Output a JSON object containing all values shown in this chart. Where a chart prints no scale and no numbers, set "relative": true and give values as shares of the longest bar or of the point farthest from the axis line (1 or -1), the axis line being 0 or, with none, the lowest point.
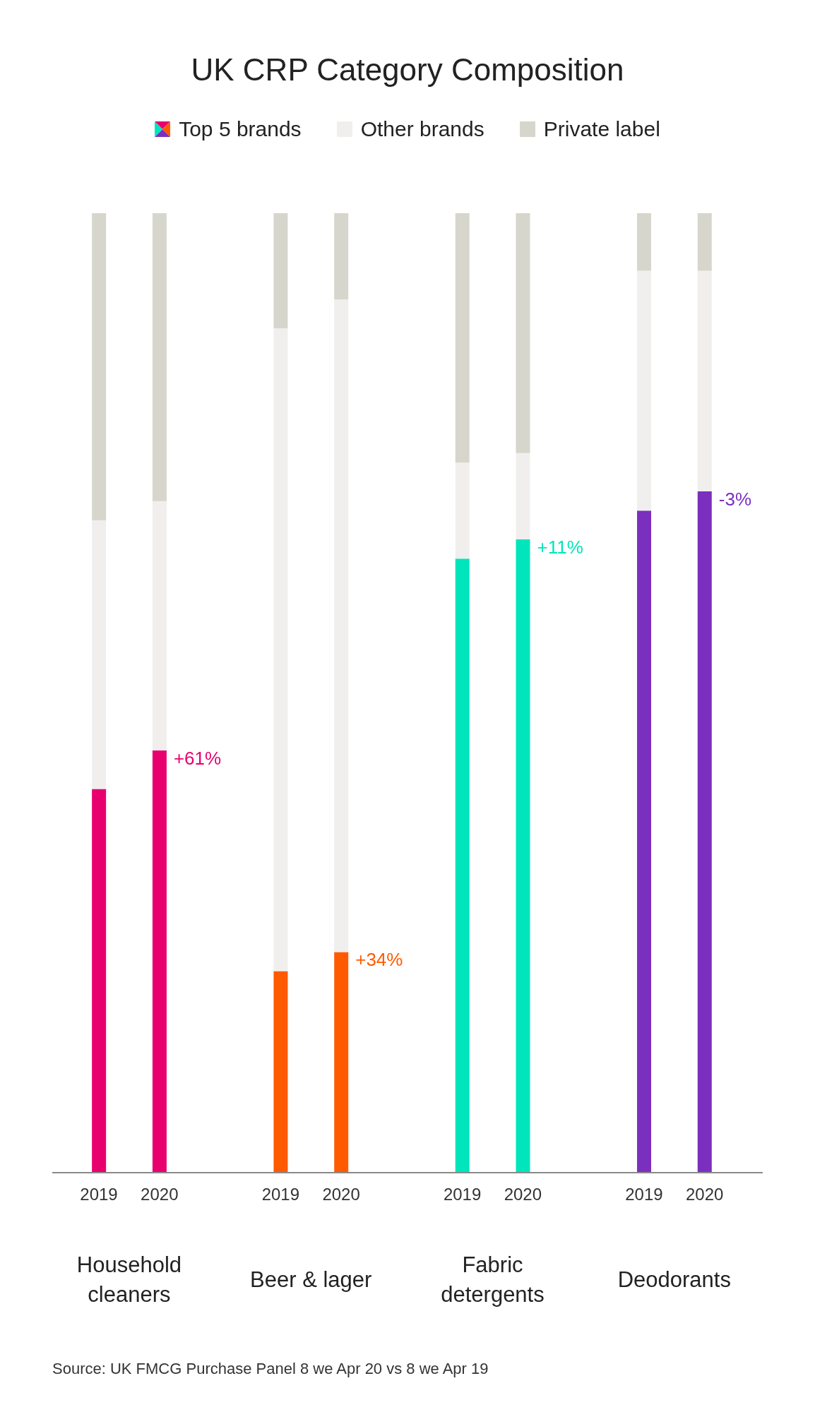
{
  "chart_data": {
    "type": "bar",
    "title": "UK CRP Category Composition",
    "stacked": true,
    "relative": true,
    "legend": "top",
    "categories": [
      "2019",
      "2020",
      "2019",
      "2020",
      "2019",
      "2020",
      "2019",
      "2020"
    ],
    "series": [
      {
        "name": "Top 5 brands",
        "colors": [
          "#e8006f",
          "#e8006f",
          "#ff5a00",
          "#ff5a00",
          "#00e5bb",
          "#00e5bb",
          "#7b2fbe",
          "#7b2fbe"
        ],
        "values": [
          0.4,
          0.44,
          0.21,
          0.23,
          0.64,
          0.66,
          0.69,
          0.71
        ]
      },
      {
        "name": "Other brands",
        "color": "#f0efed",
        "values": [
          0.28,
          0.26,
          0.67,
          0.68,
          0.1,
          0.09,
          0.25,
          0.23
        ]
      },
      {
        "name": "Private label",
        "color": "#d6d6cc",
        "values": [
          0.32,
          0.3,
          0.12,
          0.09,
          0.26,
          0.25,
          0.06,
          0.06
        ]
      }
    ],
    "annotations": [
      "Household cleaners",
      "Beer & lager",
      "Fabric detergents",
      "Deodorants",
      "+61%",
      "+34%",
      "+11%",
      "-3%",
      "Source: UK FMCG Purchase Panel 8 we Apr 20 vs 8 we Apr 19"
    ]
  }
}
